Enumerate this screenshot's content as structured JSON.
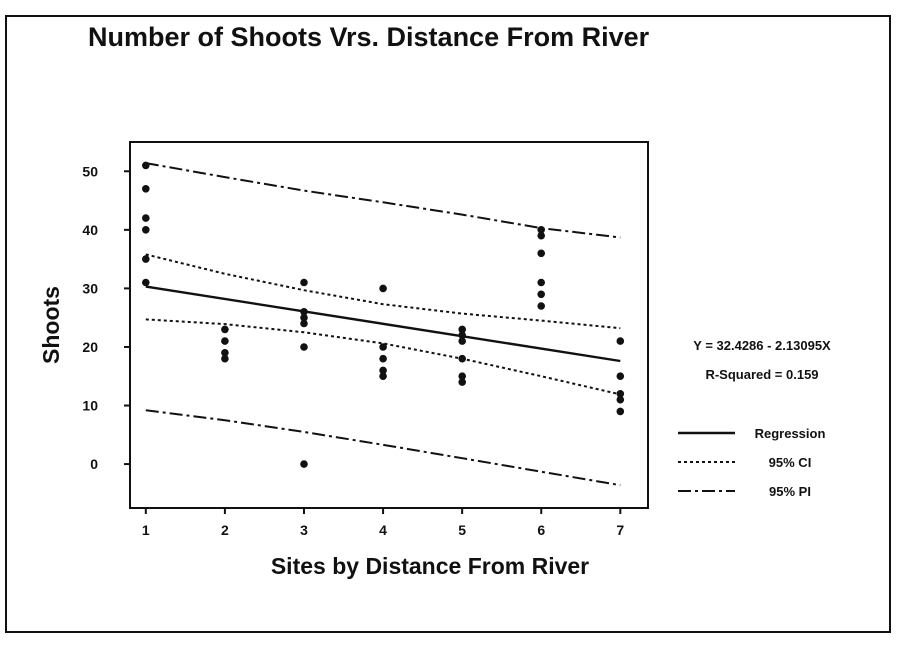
{
  "chart_data": {
    "type": "scatter",
    "title": "Number of Shoots Vrs. Distance From River",
    "xlabel": "Sites by Distance From River",
    "ylabel": "Shoots",
    "xlim": [
      0.8,
      7.35
    ],
    "ylim": [
      -7.5,
      55
    ],
    "x_ticks": [
      1,
      2,
      3,
      4,
      5,
      6,
      7
    ],
    "y_ticks": [
      0,
      10,
      20,
      30,
      40,
      50
    ],
    "grid": false,
    "legend_position": "right",
    "equation": "Y = 32.4286 - 2.13095X",
    "r_squared": "R-Squared = 0.159",
    "points": [
      {
        "x": 1,
        "y": 51
      },
      {
        "x": 1,
        "y": 47
      },
      {
        "x": 1,
        "y": 42
      },
      {
        "x": 1,
        "y": 40
      },
      {
        "x": 1,
        "y": 35
      },
      {
        "x": 1,
        "y": 31
      },
      {
        "x": 2,
        "y": 23
      },
      {
        "x": 2,
        "y": 21
      },
      {
        "x": 2,
        "y": 19
      },
      {
        "x": 2,
        "y": 18
      },
      {
        "x": 3,
        "y": 31
      },
      {
        "x": 3,
        "y": 26
      },
      {
        "x": 3,
        "y": 25
      },
      {
        "x": 3,
        "y": 24
      },
      {
        "x": 3,
        "y": 20
      },
      {
        "x": 3,
        "y": 0
      },
      {
        "x": 4,
        "y": 30
      },
      {
        "x": 4,
        "y": 20
      },
      {
        "x": 4,
        "y": 18
      },
      {
        "x": 4,
        "y": 16
      },
      {
        "x": 4,
        "y": 15
      },
      {
        "x": 5,
        "y": 23
      },
      {
        "x": 5,
        "y": 22
      },
      {
        "x": 5,
        "y": 21
      },
      {
        "x": 5,
        "y": 18
      },
      {
        "x": 5,
        "y": 15
      },
      {
        "x": 5,
        "y": 14
      },
      {
        "x": 6,
        "y": 40
      },
      {
        "x": 6,
        "y": 39
      },
      {
        "x": 6,
        "y": 36
      },
      {
        "x": 6,
        "y": 31
      },
      {
        "x": 6,
        "y": 29
      },
      {
        "x": 6,
        "y": 27
      },
      {
        "x": 7,
        "y": 21
      },
      {
        "x": 7,
        "y": 15
      },
      {
        "x": 7,
        "y": 12
      },
      {
        "x": 7,
        "y": 11
      },
      {
        "x": 7,
        "y": 9
      }
    ],
    "series": [
      {
        "name": "Regression",
        "style": "solid",
        "x": [
          1,
          7
        ],
        "y": [
          30.3,
          17.6
        ]
      },
      {
        "name": "95% CI",
        "style": "dotted",
        "x": [
          1,
          2,
          3,
          4,
          5,
          6,
          7
        ],
        "y": [
          35.8,
          32.5,
          29.7,
          27.3,
          25.7,
          24.5,
          23.2
        ]
      },
      {
        "name": "",
        "style": "dotted",
        "x": [
          1,
          2,
          3,
          4,
          5,
          6,
          7
        ],
        "y": [
          24.7,
          23.9,
          22.5,
          20.6,
          18.0,
          15.0,
          11.9
        ]
      },
      {
        "name": "95% PI",
        "style": "dashdot",
        "x": [
          1,
          2,
          3,
          4,
          5,
          6,
          7
        ],
        "y": [
          51.4,
          49.0,
          46.7,
          44.7,
          42.6,
          40.3,
          38.7
        ]
      },
      {
        "name": "",
        "style": "dashdot",
        "x": [
          1,
          2,
          3,
          4,
          5,
          6,
          7
        ],
        "y": [
          9.2,
          7.5,
          5.5,
          3.3,
          1.0,
          -1.3,
          -3.6
        ]
      }
    ]
  }
}
